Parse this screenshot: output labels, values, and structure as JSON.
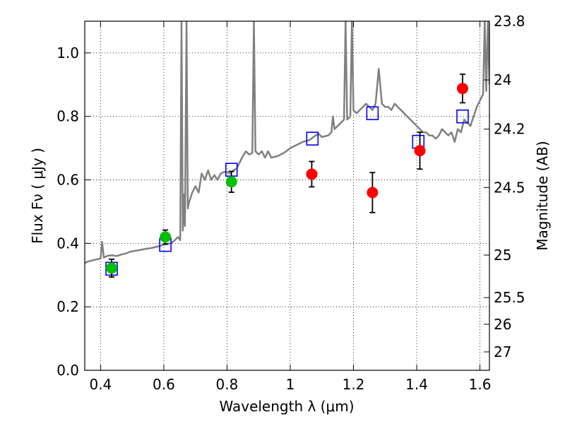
{
  "chart_data": {
    "type": "scatter",
    "xlabel": "Wavelength  λ (μm)",
    "ylabel": "Flux  Fν  ( μJy )",
    "y2label": "Magnitude (AB)",
    "xlim": [
      0.35,
      1.63
    ],
    "ylim": [
      0.0,
      1.1
    ],
    "xticks": [
      0.4,
      0.6,
      0.8,
      1.0,
      1.2,
      1.4,
      1.6
    ],
    "xtick_labels": [
      "0.4",
      "0.6",
      "0.8",
      "1",
      "1.2",
      "1.4",
      "1.6"
    ],
    "yticks": [
      0.0,
      0.2,
      0.4,
      0.6,
      0.8,
      1.0
    ],
    "ytick_labels": [
      "0.0",
      "0.2",
      "0.4",
      "0.6",
      "0.8",
      "1.0"
    ],
    "y2ticks": [
      {
        "label": "23.8",
        "flux": 1.1
      },
      {
        "label": "24",
        "flux": 0.915
      },
      {
        "label": "24.2",
        "flux": 0.76
      },
      {
        "label": "24.5",
        "flux": 0.576
      },
      {
        "label": "25",
        "flux": 0.363
      },
      {
        "label": "25.5",
        "flux": 0.229
      },
      {
        "label": "26",
        "flux": 0.145
      },
      {
        "label": "27",
        "flux": 0.058
      }
    ],
    "grid": true,
    "colors": {
      "spectrum": "#808080",
      "model_box": "#0000ff",
      "green_points": "#00c000",
      "red_points": "#ff0000",
      "errorbar": "#000000"
    },
    "series": [
      {
        "marker": "open-square",
        "color": "#0000ff",
        "points": [
          {
            "x": 0.435,
            "y": 0.32
          },
          {
            "x": 0.605,
            "y": 0.395
          },
          {
            "x": 0.814,
            "y": 0.632
          },
          {
            "x": 1.07,
            "y": 0.73
          },
          {
            "x": 1.26,
            "y": 0.81
          },
          {
            "x": 1.405,
            "y": 0.72
          },
          {
            "x": 1.545,
            "y": 0.8
          }
        ]
      },
      {
        "marker": "filled-circle",
        "color": "#00c000",
        "points": [
          {
            "x": 0.435,
            "y": 0.322,
            "err": 0.028
          },
          {
            "x": 0.605,
            "y": 0.42,
            "err": 0.022
          },
          {
            "x": 0.814,
            "y": 0.594,
            "err": 0.033
          }
        ]
      },
      {
        "marker": "filled-circle",
        "color": "#ff0000",
        "points": [
          {
            "x": 1.068,
            "y": 0.618,
            "err": 0.04
          },
          {
            "x": 1.26,
            "y": 0.56,
            "err": 0.063
          },
          {
            "x": 1.41,
            "y": 0.692,
            "err": 0.058
          },
          {
            "x": 1.545,
            "y": 0.888,
            "err": 0.045
          }
        ]
      }
    ],
    "spectrum": [
      [
        0.35,
        0.338
      ],
      [
        0.36,
        0.343
      ],
      [
        0.37,
        0.345
      ],
      [
        0.38,
        0.348
      ],
      [
        0.39,
        0.35
      ],
      [
        0.4,
        0.352
      ],
      [
        0.405,
        0.405
      ],
      [
        0.41,
        0.355
      ],
      [
        0.42,
        0.36
      ],
      [
        0.43,
        0.362
      ],
      [
        0.44,
        0.362
      ],
      [
        0.45,
        0.36
      ],
      [
        0.46,
        0.363
      ],
      [
        0.47,
        0.366
      ],
      [
        0.48,
        0.368
      ],
      [
        0.49,
        0.372
      ],
      [
        0.5,
        0.375
      ],
      [
        0.52,
        0.378
      ],
      [
        0.54,
        0.382
      ],
      [
        0.56,
        0.385
      ],
      [
        0.58,
        0.39
      ],
      [
        0.6,
        0.395
      ],
      [
        0.62,
        0.4
      ],
      [
        0.63,
        0.405
      ],
      [
        0.645,
        0.42
      ],
      [
        0.652,
        0.41
      ],
      [
        0.656,
        1.1
      ],
      [
        0.66,
        0.44
      ],
      [
        0.665,
        0.555
      ],
      [
        0.667,
        0.455
      ],
      [
        0.672,
        1.1
      ],
      [
        0.676,
        0.51
      ],
      [
        0.68,
        0.53
      ],
      [
        0.69,
        0.56
      ],
      [
        0.7,
        0.58
      ],
      [
        0.71,
        0.56
      ],
      [
        0.72,
        0.62
      ],
      [
        0.73,
        0.6
      ],
      [
        0.74,
        0.63
      ],
      [
        0.75,
        0.6
      ],
      [
        0.76,
        0.615
      ],
      [
        0.77,
        0.6
      ],
      [
        0.78,
        0.62
      ],
      [
        0.79,
        0.625
      ],
      [
        0.8,
        0.625
      ],
      [
        0.81,
        0.62
      ],
      [
        0.82,
        0.63
      ],
      [
        0.83,
        0.635
      ],
      [
        0.84,
        0.655
      ],
      [
        0.85,
        0.675
      ],
      [
        0.86,
        0.69
      ],
      [
        0.87,
        0.68
      ],
      [
        0.88,
        0.685
      ],
      [
        0.885,
        1.1
      ],
      [
        0.89,
        0.69
      ],
      [
        0.9,
        0.68
      ],
      [
        0.91,
        0.69
      ],
      [
        0.92,
        0.67
      ],
      [
        0.93,
        0.69
      ],
      [
        0.94,
        0.67
      ],
      [
        0.96,
        0.675
      ],
      [
        0.98,
        0.685
      ],
      [
        1.0,
        0.7
      ],
      [
        1.02,
        0.71
      ],
      [
        1.04,
        0.72
      ],
      [
        1.06,
        0.725
      ],
      [
        1.08,
        0.74
      ],
      [
        1.09,
        0.745
      ],
      [
        1.1,
        0.735
      ],
      [
        1.12,
        0.74
      ],
      [
        1.13,
        0.75
      ],
      [
        1.135,
        0.8
      ],
      [
        1.14,
        0.76
      ],
      [
        1.15,
        0.77
      ],
      [
        1.16,
        0.78
      ],
      [
        1.17,
        0.79
      ],
      [
        1.175,
        1.1
      ],
      [
        1.18,
        0.79
      ],
      [
        1.19,
        0.8
      ],
      [
        1.195,
        1.1
      ],
      [
        1.2,
        0.82
      ],
      [
        1.21,
        0.81
      ],
      [
        1.22,
        0.82
      ],
      [
        1.23,
        0.83
      ],
      [
        1.24,
        0.84
      ],
      [
        1.25,
        0.83
      ],
      [
        1.26,
        0.82
      ],
      [
        1.27,
        0.84
      ],
      [
        1.28,
        0.95
      ],
      [
        1.29,
        0.84
      ],
      [
        1.3,
        0.83
      ],
      [
        1.31,
        0.83
      ],
      [
        1.32,
        0.82
      ],
      [
        1.33,
        0.84
      ],
      [
        1.34,
        0.83
      ],
      [
        1.35,
        0.82
      ],
      [
        1.37,
        0.8
      ],
      [
        1.38,
        0.79
      ],
      [
        1.39,
        0.78
      ],
      [
        1.4,
        0.77
      ],
      [
        1.41,
        0.76
      ],
      [
        1.42,
        0.75
      ],
      [
        1.43,
        0.75
      ],
      [
        1.44,
        0.74
      ],
      [
        1.45,
        0.74
      ],
      [
        1.46,
        0.73
      ],
      [
        1.47,
        0.74
      ],
      [
        1.48,
        0.76
      ],
      [
        1.49,
        0.75
      ],
      [
        1.5,
        0.74
      ],
      [
        1.51,
        0.75
      ],
      [
        1.52,
        0.72
      ],
      [
        1.53,
        0.76
      ],
      [
        1.54,
        0.75
      ],
      [
        1.55,
        0.79
      ],
      [
        1.56,
        0.78
      ],
      [
        1.57,
        0.77
      ],
      [
        1.58,
        0.8
      ],
      [
        1.59,
        0.83
      ],
      [
        1.6,
        0.85
      ],
      [
        1.61,
        0.87
      ],
      [
        1.615,
        1.1
      ],
      [
        1.62,
        0.88
      ],
      [
        1.625,
        1.1
      ],
      [
        1.63,
        0.9
      ]
    ]
  }
}
